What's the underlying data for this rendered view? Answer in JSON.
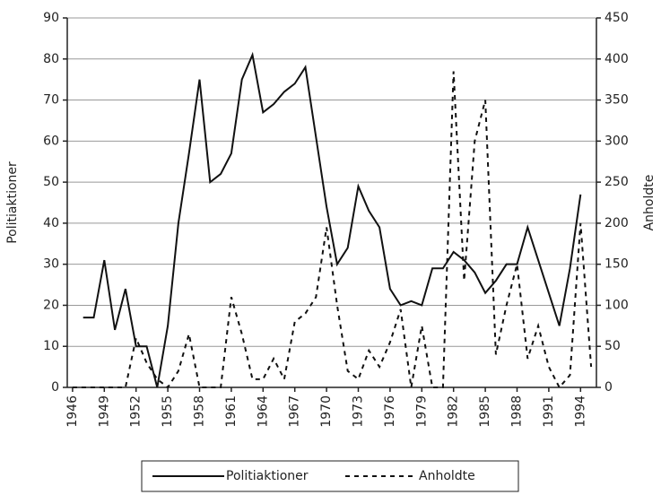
{
  "chart_data": {
    "type": "line",
    "x": [
      1946,
      1947,
      1948,
      1949,
      1950,
      1951,
      1952,
      1953,
      1954,
      1955,
      1956,
      1957,
      1958,
      1959,
      1960,
      1961,
      1962,
      1963,
      1964,
      1965,
      1966,
      1967,
      1968,
      1969,
      1970,
      1971,
      1972,
      1973,
      1974,
      1975,
      1976,
      1977,
      1978,
      1979,
      1980,
      1981,
      1982,
      1983,
      1984,
      1985,
      1986,
      1987,
      1988,
      1989,
      1990,
      1991,
      1992,
      1993,
      1994,
      1995
    ],
    "xlim": [
      1945.5,
      1995.5
    ],
    "xticks": [
      1946,
      1949,
      1952,
      1955,
      1958,
      1961,
      1964,
      1967,
      1970,
      1973,
      1976,
      1979,
      1982,
      1985,
      1988,
      1991,
      1994
    ],
    "ylabel": "Politiaktioner",
    "y2label": "Anholdte",
    "ylim": [
      0,
      90
    ],
    "yticks": [
      0,
      10,
      20,
      30,
      40,
      50,
      60,
      70,
      80,
      90
    ],
    "y2lim": [
      0,
      450
    ],
    "y2ticks": [
      0,
      50,
      100,
      150,
      200,
      250,
      300,
      350,
      400,
      450
    ],
    "grid": true,
    "legend": "bottom",
    "series": [
      {
        "name": "Politiaktioner",
        "color": "#111111",
        "dash": "solid",
        "values": [
          null,
          17,
          17,
          31,
          14,
          24,
          10,
          10,
          0,
          15,
          40,
          57,
          75,
          50,
          52,
          57,
          75,
          81,
          67,
          69,
          72,
          74,
          78,
          61,
          44,
          30,
          34,
          49,
          43,
          39,
          24,
          20,
          21,
          20,
          29,
          29,
          33,
          31,
          28,
          23,
          26,
          30,
          30,
          39,
          31,
          23,
          15,
          29,
          47,
          null
        ]
      },
      {
        "name": "Anholdte",
        "color": "#111111",
        "dash": "dashed",
        "axis": "y2",
        "values": [
          0,
          0,
          0,
          0,
          0,
          0,
          60,
          30,
          10,
          0,
          20,
          65,
          0,
          0,
          0,
          110,
          65,
          10,
          10,
          35,
          10,
          80,
          90,
          110,
          195,
          100,
          20,
          10,
          45,
          25,
          55,
          95,
          0,
          75,
          0,
          0,
          385,
          130,
          300,
          350,
          40,
          100,
          150,
          35,
          75,
          25,
          0,
          15,
          200,
          25
        ]
      }
    ]
  }
}
